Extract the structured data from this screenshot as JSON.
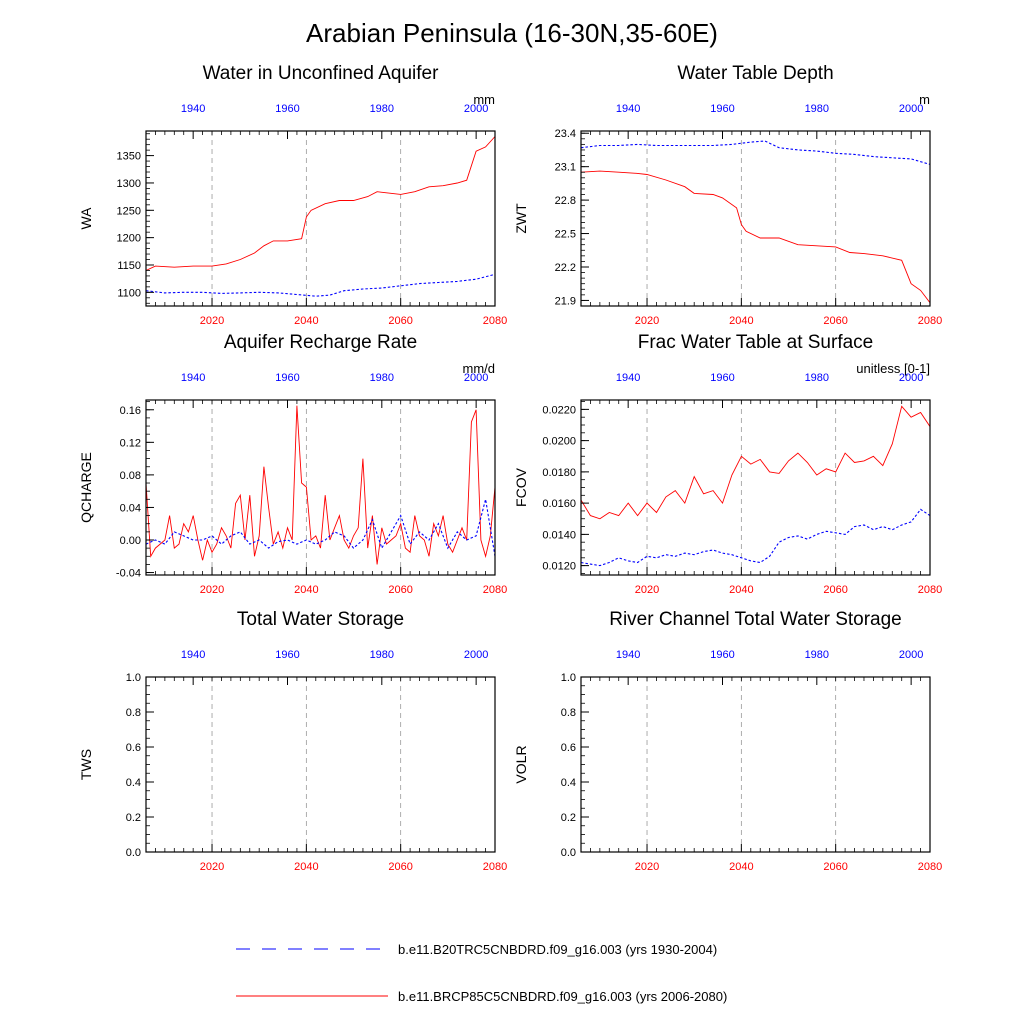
{
  "figure": {
    "title": "Arabian Peninsula (16-30N,35-60E)"
  },
  "colors": {
    "future": "#ff0000",
    "historical": "#0000ff",
    "axis": "#000000",
    "grid": "#999999"
  },
  "legend": [
    {
      "name": "b.e11.B20TRC5CNBDRD.f09_g16.003 (yrs 1930-2004)",
      "color": "#0000ff",
      "style": "dashed"
    },
    {
      "name": "b.e11.BRCP85C5CNBDRD.f09_g16.003 (yrs 2006-2080)",
      "color": "#ff0000",
      "style": "solid"
    }
  ],
  "chart_data": [
    {
      "type": "line",
      "title": "Water in Unconfined Aquifer",
      "ylabel": "WA",
      "units": "mm",
      "xlim_bottom": [
        2006,
        2080
      ],
      "xlim_top": [
        1930,
        2004
      ],
      "x_ticks_bottom": [
        2020,
        2040,
        2060,
        2080
      ],
      "x_ticks_top": [
        1940,
        1960,
        1980,
        2000
      ],
      "ylim": [
        1075,
        1395
      ],
      "y_ticks": [
        1100,
        1150,
        1200,
        1250,
        1300,
        1350
      ],
      "y_minor_step": 10,
      "vgrid": [
        2020,
        2040,
        2060
      ],
      "series": [
        {
          "color": "#ff0000",
          "style": "solid",
          "x": [
            2006,
            2008,
            2012,
            2016,
            2020,
            2023,
            2026,
            2029,
            2031,
            2033,
            2036,
            2039,
            2040,
            2041,
            2044,
            2047,
            2050,
            2053,
            2055,
            2057,
            2060,
            2063,
            2066,
            2069,
            2072,
            2074,
            2076,
            2078,
            2080
          ],
          "y": [
            1140,
            1148,
            1146,
            1148,
            1148,
            1152,
            1160,
            1172,
            1185,
            1194,
            1194,
            1198,
            1238,
            1250,
            1262,
            1268,
            1268,
            1275,
            1284,
            1282,
            1279,
            1284,
            1293,
            1295,
            1300,
            1305,
            1358,
            1366,
            1385
          ]
        },
        {
          "color": "#0000ff",
          "style": "dashed",
          "x": [
            2006,
            2010,
            2014,
            2018,
            2022,
            2026,
            2030,
            2034,
            2038,
            2042,
            2045,
            2048,
            2052,
            2056,
            2060,
            2064,
            2068,
            2072,
            2076,
            2080
          ],
          "y": [
            1103,
            1099,
            1100,
            1100,
            1098,
            1099,
            1100,
            1099,
            1096,
            1093,
            1095,
            1103,
            1106,
            1108,
            1112,
            1116,
            1118,
            1120,
            1124,
            1133
          ]
        }
      ]
    },
    {
      "type": "line",
      "title": "Water Table Depth",
      "ylabel": "ZWT",
      "units": "m",
      "xlim_bottom": [
        2006,
        2080
      ],
      "xlim_top": [
        1930,
        2004
      ],
      "x_ticks_bottom": [
        2020,
        2040,
        2060,
        2080
      ],
      "x_ticks_top": [
        1940,
        1960,
        1980,
        2000
      ],
      "ylim": [
        21.85,
        23.42
      ],
      "y_ticks": [
        21.9,
        22.2,
        22.5,
        22.8,
        23.1,
        23.4
      ],
      "y_tick_labels": [
        "21.9",
        "22.2",
        "22.5",
        "22.8",
        "23.1",
        "23.4"
      ],
      "y_minor_step": 0.05,
      "vgrid": [
        2020,
        2040,
        2060
      ],
      "series": [
        {
          "color": "#ff0000",
          "style": "solid",
          "x": [
            2006,
            2010,
            2014,
            2018,
            2020,
            2024,
            2028,
            2030,
            2034,
            2036,
            2039,
            2040,
            2041,
            2044,
            2048,
            2052,
            2056,
            2060,
            2063,
            2066,
            2070,
            2074,
            2076,
            2078,
            2080
          ],
          "y": [
            23.05,
            23.06,
            23.05,
            23.04,
            23.03,
            22.98,
            22.92,
            22.86,
            22.85,
            22.82,
            22.73,
            22.58,
            22.52,
            22.46,
            22.46,
            22.4,
            22.39,
            22.38,
            22.33,
            22.32,
            22.3,
            22.26,
            22.05,
            21.99,
            21.88
          ]
        },
        {
          "color": "#0000ff",
          "style": "dashed",
          "x": [
            2006,
            2010,
            2014,
            2018,
            2022,
            2026,
            2030,
            2034,
            2038,
            2042,
            2045,
            2048,
            2052,
            2056,
            2060,
            2064,
            2068,
            2072,
            2076,
            2080
          ],
          "y": [
            23.27,
            23.29,
            23.29,
            23.3,
            23.29,
            23.29,
            23.29,
            23.29,
            23.3,
            23.32,
            23.33,
            23.27,
            23.25,
            23.24,
            23.22,
            23.21,
            23.19,
            23.18,
            23.17,
            23.12
          ]
        }
      ]
    },
    {
      "type": "line",
      "title": "Aquifer Recharge Rate",
      "ylabel": "QCHARGE",
      "units": "mm/d",
      "xlim_bottom": [
        2006,
        2080
      ],
      "xlim_top": [
        1930,
        2004
      ],
      "x_ticks_bottom": [
        2020,
        2040,
        2060,
        2080
      ],
      "x_ticks_top": [
        1940,
        1960,
        1980,
        2000
      ],
      "ylim": [
        -0.043,
        0.172
      ],
      "y_ticks": [
        -0.04,
        0.0,
        0.04,
        0.08,
        0.12,
        0.16
      ],
      "y_tick_labels": [
        "-0.04",
        "0.00",
        "0.04",
        "0.08",
        "0.12",
        "0.16"
      ],
      "y_minor_step": 0.01,
      "vgrid": [
        2020,
        2040,
        2060
      ],
      "series": [
        {
          "color": "#ff0000",
          "style": "solid",
          "x": [
            2006,
            2007,
            2008,
            2009,
            2010,
            2011,
            2012,
            2013,
            2014,
            2015,
            2016,
            2017,
            2018,
            2019,
            2020,
            2021,
            2022,
            2023,
            2024,
            2025,
            2026,
            2027,
            2028,
            2029,
            2030,
            2031,
            2032,
            2033,
            2034,
            2035,
            2036,
            2037,
            2038,
            2039,
            2040,
            2041,
            2042,
            2043,
            2044,
            2045,
            2046,
            2047,
            2048,
            2049,
            2050,
            2051,
            2052,
            2053,
            2054,
            2055,
            2056,
            2057,
            2058,
            2059,
            2060,
            2061,
            2062,
            2063,
            2064,
            2065,
            2066,
            2067,
            2068,
            2069,
            2070,
            2071,
            2072,
            2073,
            2074,
            2075,
            2076,
            2077,
            2078,
            2079,
            2080
          ],
          "y": [
            0.07,
            -0.02,
            -0.01,
            -0.005,
            0.0,
            0.03,
            -0.01,
            -0.005,
            0.02,
            0.01,
            0.03,
            0.0,
            -0.025,
            0.0,
            -0.015,
            -0.005,
            0.015,
            0.005,
            -0.01,
            0.045,
            0.055,
            0.0,
            0.055,
            -0.02,
            0.005,
            0.09,
            0.04,
            -0.005,
            0.01,
            -0.01,
            0.015,
            0.0,
            0.165,
            0.07,
            0.065,
            0.0,
            0.005,
            -0.01,
            0.055,
            0.0,
            0.015,
            0.03,
            0.0,
            -0.01,
            0.005,
            0.015,
            0.1,
            -0.01,
            0.03,
            -0.03,
            0.015,
            -0.005,
            0.0,
            0.005,
            0.02,
            -0.01,
            -0.015,
            0.03,
            0.005,
            0.0,
            -0.02,
            0.02,
            0.005,
            0.03,
            -0.005,
            -0.015,
            0.0,
            0.015,
            0.0,
            0.145,
            0.16,
            0.0,
            -0.02,
            0.005,
            0.065
          ]
        },
        {
          "color": "#0000ff",
          "style": "dashed",
          "x": [
            2006,
            2008,
            2010,
            2012,
            2014,
            2016,
            2018,
            2020,
            2022,
            2024,
            2026,
            2028,
            2030,
            2032,
            2034,
            2036,
            2038,
            2040,
            2042,
            2044,
            2046,
            2048,
            2050,
            2052,
            2054,
            2056,
            2058,
            2060,
            2062,
            2064,
            2066,
            2068,
            2070,
            2072,
            2074,
            2076,
            2078,
            2080
          ],
          "y": [
            -0.005,
            0.0,
            -0.005,
            0.01,
            0.005,
            0.0,
            0.0,
            0.005,
            -0.005,
            0.005,
            0.01,
            -0.005,
            0.0,
            -0.01,
            -0.002,
            0.0,
            -0.005,
            0.0,
            -0.005,
            0.0,
            0.01,
            0.005,
            -0.01,
            0.0,
            0.025,
            -0.01,
            0.01,
            0.03,
            -0.005,
            0.01,
            0.0,
            0.02,
            -0.01,
            0.01,
            0.0,
            0.005,
            0.05,
            -0.02
          ]
        }
      ]
    },
    {
      "type": "line",
      "title": "Frac Water Table at Surface",
      "ylabel": "FCOV",
      "units": "unitless [0-1]",
      "xlim_bottom": [
        2006,
        2080
      ],
      "xlim_top": [
        1930,
        2004
      ],
      "x_ticks_bottom": [
        2020,
        2040,
        2060,
        2080
      ],
      "x_ticks_top": [
        1940,
        1960,
        1980,
        2000
      ],
      "ylim": [
        0.0114,
        0.0226
      ],
      "y_ticks": [
        0.012,
        0.014,
        0.016,
        0.018,
        0.02,
        0.022
      ],
      "y_tick_labels": [
        "0.0120",
        "0.0140",
        "0.0160",
        "0.0180",
        "0.0200",
        "0.0220"
      ],
      "y_minor_step": 0.0005,
      "vgrid": [
        2020,
        2040,
        2060
      ],
      "series": [
        {
          "color": "#ff0000",
          "style": "solid",
          "x": [
            2006,
            2008,
            2010,
            2012,
            2014,
            2016,
            2018,
            2020,
            2022,
            2024,
            2026,
            2028,
            2030,
            2032,
            2034,
            2036,
            2038,
            2040,
            2042,
            2044,
            2046,
            2048,
            2050,
            2052,
            2054,
            2056,
            2058,
            2060,
            2062,
            2064,
            2066,
            2068,
            2070,
            2072,
            2074,
            2076,
            2078,
            2080
          ],
          "y": [
            0.0162,
            0.0152,
            0.015,
            0.0154,
            0.0152,
            0.016,
            0.0152,
            0.016,
            0.0154,
            0.0164,
            0.0168,
            0.016,
            0.0177,
            0.0166,
            0.0168,
            0.016,
            0.0178,
            0.019,
            0.0185,
            0.0188,
            0.018,
            0.0179,
            0.0187,
            0.0192,
            0.0186,
            0.0178,
            0.0182,
            0.018,
            0.0192,
            0.0186,
            0.0187,
            0.019,
            0.0184,
            0.0198,
            0.0222,
            0.0215,
            0.0218,
            0.0209
          ]
        },
        {
          "color": "#0000ff",
          "style": "dashed",
          "x": [
            2006,
            2008,
            2010,
            2012,
            2014,
            2016,
            2018,
            2020,
            2022,
            2024,
            2026,
            2028,
            2030,
            2032,
            2034,
            2036,
            2038,
            2040,
            2042,
            2044,
            2046,
            2048,
            2050,
            2052,
            2054,
            2056,
            2058,
            2060,
            2062,
            2064,
            2066,
            2068,
            2070,
            2072,
            2074,
            2076,
            2078,
            2080
          ],
          "y": [
            0.0122,
            0.0121,
            0.012,
            0.0122,
            0.0125,
            0.0123,
            0.0122,
            0.0126,
            0.0125,
            0.0127,
            0.0126,
            0.0128,
            0.0127,
            0.0129,
            0.013,
            0.0128,
            0.0127,
            0.0125,
            0.0123,
            0.0122,
            0.0126,
            0.0135,
            0.0138,
            0.0139,
            0.0137,
            0.014,
            0.0142,
            0.0141,
            0.014,
            0.0145,
            0.0146,
            0.0143,
            0.0145,
            0.0143,
            0.0146,
            0.0148,
            0.0156,
            0.0152
          ]
        }
      ]
    },
    {
      "type": "line",
      "title": "Total Water Storage",
      "ylabel": "TWS",
      "units": "",
      "xlim_bottom": [
        2006,
        2080
      ],
      "xlim_top": [
        1930,
        2004
      ],
      "x_ticks_bottom": [
        2020,
        2040,
        2060,
        2080
      ],
      "x_ticks_top": [
        1940,
        1960,
        1980,
        2000
      ],
      "ylim": [
        0.0,
        1.0
      ],
      "y_ticks": [
        0.0,
        0.2,
        0.4,
        0.6,
        0.8,
        1.0
      ],
      "y_tick_labels": [
        "0.0",
        "0.2",
        "0.4",
        "0.6",
        "0.8",
        "1.0"
      ],
      "y_minor_step": 0.05,
      "vgrid": [
        2020,
        2040,
        2060
      ],
      "series": []
    },
    {
      "type": "line",
      "title": "River Channel Total Water Storage",
      "ylabel": "VOLR",
      "units": "",
      "xlim_bottom": [
        2006,
        2080
      ],
      "xlim_top": [
        1930,
        2004
      ],
      "x_ticks_bottom": [
        2020,
        2040,
        2060,
        2080
      ],
      "x_ticks_top": [
        1940,
        1960,
        1980,
        2000
      ],
      "ylim": [
        0.0,
        1.0
      ],
      "y_ticks": [
        0.0,
        0.2,
        0.4,
        0.6,
        0.8,
        1.0
      ],
      "y_tick_labels": [
        "0.0",
        "0.2",
        "0.4",
        "0.6",
        "0.8",
        "1.0"
      ],
      "y_minor_step": 0.05,
      "vgrid": [
        2020,
        2040,
        2060
      ],
      "series": []
    }
  ]
}
